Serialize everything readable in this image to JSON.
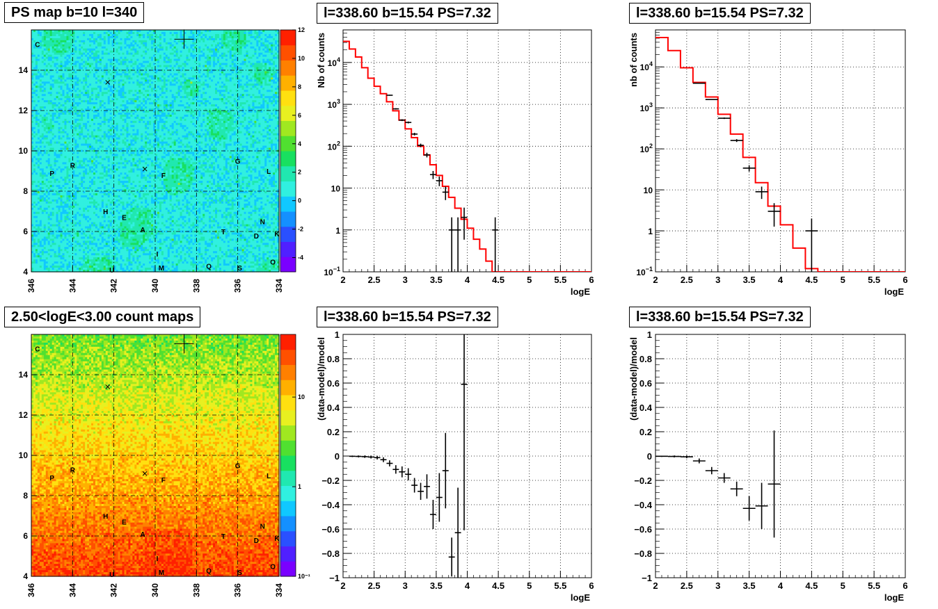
{
  "colors": {
    "model_line": "#ff0000",
    "data_points": "#000000",
    "grid": "#000000"
  },
  "chart_data": [
    {
      "type": "heatmap",
      "title": "PS map b=10 l=340",
      "x_ticks": [
        "346",
        "344",
        "342",
        "340",
        "338",
        "336",
        "334"
      ],
      "y_ticks": [
        "4",
        "6",
        "8",
        "10",
        "12",
        "14"
      ],
      "xlim": [
        346,
        334
      ],
      "ylim": [
        4,
        16
      ],
      "colorbar": {
        "range": [
          -5,
          12
        ],
        "ticks": [
          "-4",
          "-2",
          "0",
          "2",
          "4",
          "6",
          "8",
          "10",
          "12"
        ]
      },
      "grid": true,
      "source_labels": [
        {
          "label": "C",
          "l": 345.7,
          "b": 15.3
        },
        {
          "label": "R",
          "l": 344.0,
          "b": 9.3
        },
        {
          "label": "P",
          "l": 345.0,
          "b": 8.9
        },
        {
          "label": "H",
          "l": 342.4,
          "b": 7.0
        },
        {
          "label": "E",
          "l": 341.5,
          "b": 6.7
        },
        {
          "label": "A",
          "l": 340.6,
          "b": 6.1
        },
        {
          "label": "I",
          "l": 339.9,
          "b": 4.9
        },
        {
          "label": "M",
          "l": 339.7,
          "b": 4.2
        },
        {
          "label": "F",
          "l": 339.6,
          "b": 8.8
        },
        {
          "label": "Q",
          "l": 337.4,
          "b": 4.3
        },
        {
          "label": "S",
          "l": 335.9,
          "b": 4.2
        },
        {
          "label": "T",
          "l": 336.7,
          "b": 6.0
        },
        {
          "label": "G",
          "l": 336.0,
          "b": 9.5
        },
        {
          "label": "L",
          "l": 334.5,
          "b": 9.0
        },
        {
          "label": "N",
          "l": 334.8,
          "b": 6.5
        },
        {
          "label": "D",
          "l": 335.1,
          "b": 5.8
        },
        {
          "label": "K",
          "l": 334.1,
          "b": 5.9
        },
        {
          "label": "O",
          "l": 334.3,
          "b": 4.5
        },
        {
          "label": "U",
          "l": 342.1,
          "b": 4.1
        }
      ],
      "markers": [
        {
          "type": "plus",
          "l": 338.6,
          "b": 15.54
        },
        {
          "type": "x",
          "l": 342.3,
          "b": 13.4
        },
        {
          "type": "x",
          "l": 340.5,
          "b": 9.1
        }
      ]
    },
    {
      "type": "line",
      "title": "l=338.60 b=15.54 PS=7.32",
      "xlabel": "logE",
      "ylabel": "Nb of counts",
      "yscale": "log",
      "xlim": [
        2,
        6
      ],
      "ylim": [
        0.1,
        60000
      ],
      "x_ticks": [
        "2",
        "2.5",
        "3",
        "3.5",
        "4",
        "4.5",
        "5",
        "5.5",
        "6"
      ],
      "y_ticks": [
        {
          "v": 0.1,
          "t": "10",
          "sup": "−1"
        },
        {
          "v": 1,
          "t": "1"
        },
        {
          "v": 10,
          "t": "10"
        },
        {
          "v": 100,
          "t": "10",
          "sup": "2"
        },
        {
          "v": 1000,
          "t": "10",
          "sup": "3"
        },
        {
          "v": 10000,
          "t": "10",
          "sup": "4"
        }
      ],
      "grid": true,
      "series": [
        {
          "kind": "step",
          "x": [
            2.0,
            2.1,
            2.2,
            2.3,
            2.4,
            2.5,
            2.6,
            2.7,
            2.8,
            2.9,
            3.0,
            3.1,
            3.2,
            3.3,
            3.4,
            3.5,
            3.6,
            3.7,
            3.8,
            3.9,
            4.0,
            4.1,
            4.2,
            4.3,
            4.4,
            4.5,
            4.6,
            4.7,
            4.8,
            4.9,
            5.0,
            5.1,
            5.2,
            5.3,
            5.4,
            5.5,
            5.6,
            5.7,
            5.8,
            5.9
          ],
          "values": [
            32000,
            21000,
            13500,
            7500,
            4200,
            2700,
            1800,
            1150,
            700,
            420,
            260,
            160,
            100,
            62,
            36,
            20,
            11,
            6,
            3.3,
            1.8,
            1.1,
            0.6,
            0.35,
            0.18,
            0.1,
            0.1,
            0.1,
            0.1,
            0.1,
            0.1,
            0.1,
            0.1,
            0.1,
            0.1,
            0.1,
            0.1,
            0.1,
            0.1,
            0.1,
            0.1
          ]
        },
        {
          "kind": "points",
          "points": [
            {
              "x": 2.75,
              "y": 1650
            },
            {
              "x": 2.85,
              "y": 780
            },
            {
              "x": 2.95,
              "y": 420
            },
            {
              "x": 3.05,
              "y": 370
            },
            {
              "x": 3.15,
              "y": 195
            },
            {
              "x": 3.25,
              "y": 105
            },
            {
              "x": 3.35,
              "y": 62
            },
            {
              "x": 3.45,
              "y": 21
            },
            {
              "x": 3.55,
              "y": 15
            },
            {
              "x": 3.65,
              "y": 8
            },
            {
              "x": 3.75,
              "y": 1
            },
            {
              "x": 3.85,
              "y": 1
            },
            {
              "x": 3.95,
              "y": 2
            },
            {
              "x": 4.45,
              "y": 1
            }
          ]
        }
      ]
    },
    {
      "type": "line",
      "title": "l=338.60 b=15.54 PS=7.32",
      "xlabel": "logE",
      "ylabel": "nb of counts",
      "yscale": "log",
      "xlim": [
        2,
        6
      ],
      "ylim": [
        0.1,
        80000
      ],
      "x_ticks": [
        "2",
        "2.5",
        "3",
        "3.5",
        "4",
        "4.5",
        "5",
        "5.5",
        "6"
      ],
      "y_ticks": [
        {
          "v": 0.1,
          "t": "10",
          "sup": "−1"
        },
        {
          "v": 1,
          "t": "1"
        },
        {
          "v": 10,
          "t": "10"
        },
        {
          "v": 100,
          "t": "10",
          "sup": "2"
        },
        {
          "v": 1000,
          "t": "10",
          "sup": "3"
        },
        {
          "v": 10000,
          "t": "10",
          "sup": "4"
        }
      ],
      "grid": true,
      "series": [
        {
          "kind": "step",
          "x": [
            2.0,
            2.2,
            2.4,
            2.6,
            2.8,
            3.0,
            3.2,
            3.4,
            3.6,
            3.8,
            4.0,
            4.2,
            4.4,
            4.6,
            4.8,
            5.0,
            5.2,
            5.4,
            5.6,
            5.8
          ],
          "values": [
            52000,
            25000,
            9500,
            4200,
            1850,
            700,
            230,
            62,
            15,
            4,
            1.4,
            0.38,
            0.12,
            0.1,
            0.1,
            0.1,
            0.1,
            0.1,
            0.1,
            0.1
          ]
        },
        {
          "kind": "points",
          "points": [
            {
              "x": 2.7,
              "y": 4000
            },
            {
              "x": 2.9,
              "y": 1600
            },
            {
              "x": 3.1,
              "y": 560
            },
            {
              "x": 3.3,
              "y": 160
            },
            {
              "x": 3.5,
              "y": 34
            },
            {
              "x": 3.7,
              "y": 9
            },
            {
              "x": 3.9,
              "y": 3
            },
            {
              "x": 4.5,
              "y": 1
            }
          ]
        }
      ]
    },
    {
      "type": "heatmap",
      "title": "2.50<logE<3.00 count maps",
      "x_ticks": [
        "346",
        "344",
        "342",
        "340",
        "338",
        "336",
        "334"
      ],
      "y_ticks": [
        "4",
        "6",
        "8",
        "10",
        "12",
        "14"
      ],
      "xlim": [
        346,
        334
      ],
      "ylim": [
        4,
        16
      ],
      "colorbar": {
        "scale": "log",
        "range": [
          0.1,
          50
        ],
        "ticks": [
          "10⁻¹",
          "1",
          "10"
        ]
      },
      "grid": true
    },
    {
      "type": "scatter",
      "title": "l=338.60 b=15.54 PS=7.32",
      "xlabel": "logE",
      "ylabel": "(data-model)/model",
      "xlim": [
        2,
        6
      ],
      "ylim": [
        -1,
        1
      ],
      "x_ticks": [
        "2",
        "2.5",
        "3",
        "3.5",
        "4",
        "4.5",
        "5",
        "5.5",
        "6"
      ],
      "y_ticks": [
        "−1",
        "−0.8",
        "−0.6",
        "−0.4",
        "−0.2",
        "0",
        "0.2",
        "0.4",
        "0.6",
        "0.8",
        "1"
      ],
      "grid": true,
      "points": [
        {
          "x": 2.15,
          "y": -0.002,
          "err": 0.006
        },
        {
          "x": 2.25,
          "y": -0.003,
          "err": 0.008
        },
        {
          "x": 2.35,
          "y": -0.005,
          "err": 0.01
        },
        {
          "x": 2.45,
          "y": -0.008,
          "err": 0.012
        },
        {
          "x": 2.55,
          "y": -0.013,
          "err": 0.015
        },
        {
          "x": 2.65,
          "y": -0.03,
          "err": 0.02
        },
        {
          "x": 2.75,
          "y": -0.06,
          "err": 0.025
        },
        {
          "x": 2.85,
          "y": -0.11,
          "err": 0.035
        },
        {
          "x": 2.95,
          "y": -0.13,
          "err": 0.045
        },
        {
          "x": 3.05,
          "y": -0.15,
          "err": 0.05
        },
        {
          "x": 3.15,
          "y": -0.24,
          "err": 0.06
        },
        {
          "x": 3.25,
          "y": -0.29,
          "err": 0.07
        },
        {
          "x": 3.35,
          "y": -0.25,
          "err": 0.1
        },
        {
          "x": 3.45,
          "y": -0.48,
          "err": 0.12
        },
        {
          "x": 3.55,
          "y": -0.34,
          "err": 0.2
        },
        {
          "x": 3.65,
          "y": -0.12,
          "err": 0.31
        },
        {
          "x": 3.75,
          "y": -0.83,
          "err": 0.16
        },
        {
          "x": 3.85,
          "y": -0.63,
          "err": 0.37
        },
        {
          "x": 3.95,
          "y": 0.59,
          "err": 1.2
        }
      ]
    },
    {
      "type": "scatter",
      "title": "l=338.60 b=15.54 PS=7.32",
      "xlabel": "logE",
      "ylabel": "(data-model)/model",
      "xlim": [
        2,
        6
      ],
      "ylim": [
        -1,
        1
      ],
      "x_ticks": [
        "2",
        "2.5",
        "3",
        "3.5",
        "4",
        "4.5",
        "5",
        "5.5",
        "6"
      ],
      "y_ticks": [
        "−1",
        "−0.8",
        "−0.6",
        "−0.4",
        "−0.2",
        "0",
        "0.2",
        "0.4",
        "0.6",
        "0.8",
        "1"
      ],
      "grid": true,
      "points": [
        {
          "x": 2.1,
          "y": -0.002,
          "err": 0.005
        },
        {
          "x": 2.3,
          "y": -0.003,
          "err": 0.008
        },
        {
          "x": 2.5,
          "y": -0.006,
          "err": 0.012
        },
        {
          "x": 2.7,
          "y": -0.04,
          "err": 0.02
        },
        {
          "x": 2.9,
          "y": -0.12,
          "err": 0.03
        },
        {
          "x": 3.1,
          "y": -0.18,
          "err": 0.04
        },
        {
          "x": 3.3,
          "y": -0.27,
          "err": 0.06
        },
        {
          "x": 3.5,
          "y": -0.43,
          "err": 0.1
        },
        {
          "x": 3.7,
          "y": -0.41,
          "err": 0.19
        },
        {
          "x": 3.9,
          "y": -0.23,
          "err": 0.44
        }
      ]
    }
  ]
}
